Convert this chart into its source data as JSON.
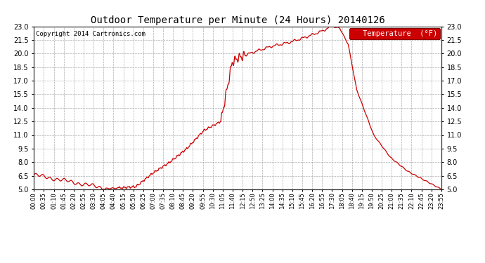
{
  "title": "Outdoor Temperature per Minute (24 Hours) 20140126",
  "copyright_text": "Copyright 2014 Cartronics.com",
  "legend_label": "Temperature  (°F)",
  "line_color": "#cc0000",
  "background_color": "#ffffff",
  "grid_color": "#999999",
  "ylim": [
    5.0,
    23.0
  ],
  "yticks": [
    5.0,
    6.5,
    8.0,
    9.5,
    11.0,
    12.5,
    14.0,
    15.5,
    17.0,
    18.5,
    20.0,
    21.5,
    23.0
  ],
  "x_tick_labels": [
    "00:00",
    "00:35",
    "01:10",
    "01:45",
    "02:20",
    "02:55",
    "03:30",
    "04:05",
    "04:40",
    "05:15",
    "05:50",
    "06:25",
    "07:00",
    "07:35",
    "08:10",
    "08:45",
    "09:20",
    "09:55",
    "10:30",
    "11:05",
    "11:40",
    "12:15",
    "12:50",
    "13:25",
    "14:00",
    "14:35",
    "15:10",
    "15:45",
    "16:20",
    "16:55",
    "17:30",
    "18:05",
    "18:40",
    "19:15",
    "19:50",
    "20:25",
    "21:00",
    "21:35",
    "22:10",
    "22:45",
    "23:20",
    "23:55"
  ],
  "legend_bg": "#cc0000",
  "legend_text_color": "#ffffff",
  "key_times": [
    0,
    255,
    300,
    360,
    420,
    480,
    540,
    600,
    660,
    700,
    720,
    780,
    840,
    900,
    960,
    1020,
    1050,
    1080,
    1110,
    1140,
    1200,
    1260,
    1320,
    1380,
    1440
  ],
  "key_temps": [
    6.6,
    5.1,
    5.15,
    5.3,
    6.8,
    8.0,
    9.5,
    11.5,
    12.5,
    19.0,
    19.5,
    20.2,
    20.8,
    21.2,
    21.8,
    22.5,
    23.0,
    22.8,
    21.0,
    16.0,
    11.0,
    8.5,
    7.0,
    6.0,
    5.0
  ]
}
